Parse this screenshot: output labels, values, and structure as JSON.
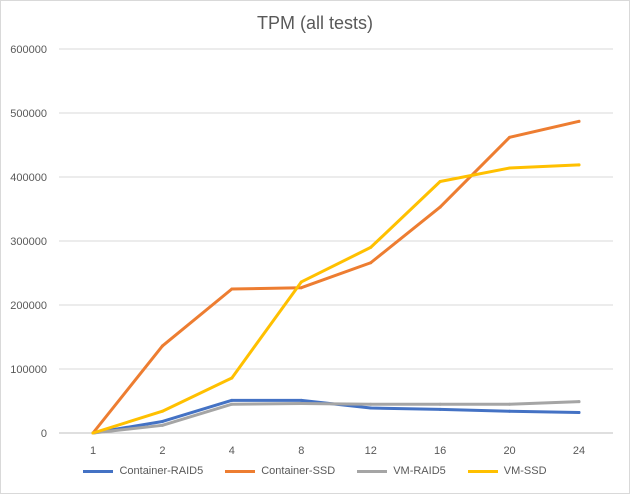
{
  "chart_data": {
    "type": "line",
    "title": "TPM (all tests)",
    "xlabel": "",
    "ylabel": "",
    "categories": [
      "1",
      "2",
      "4",
      "8",
      "12",
      "16",
      "20",
      "24"
    ],
    "ylim": [
      0,
      600000
    ],
    "yticks": [
      "0",
      "100000",
      "200000",
      "300000",
      "400000",
      "500000",
      "600000"
    ],
    "grid": true,
    "legend_position": "bottom",
    "series": [
      {
        "name": "Container-RAID5",
        "color": "#4472c4",
        "values": [
          0,
          18000,
          51000,
          51000,
          39000,
          37000,
          34000,
          32000
        ]
      },
      {
        "name": "Container-SSD",
        "color": "#ed7d31",
        "values": [
          0,
          136000,
          225000,
          227000,
          266000,
          353000,
          462000,
          487000
        ]
      },
      {
        "name": "VM-RAID5",
        "color": "#a5a5a5",
        "values": [
          0,
          12000,
          45000,
          46000,
          45000,
          45000,
          45000,
          49000
        ]
      },
      {
        "name": "VM-SSD",
        "color": "#ffc000",
        "values": [
          0,
          34000,
          86000,
          236000,
          290000,
          393000,
          414000,
          419000
        ]
      }
    ]
  }
}
